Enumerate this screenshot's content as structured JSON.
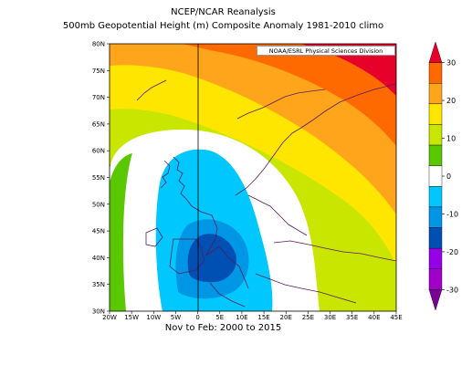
{
  "header": {
    "title": "NCEP/NCAR Reanalysis",
    "subtitle": "500mb Geopotential Height (m) Composite Anomaly 1981-2010 climo"
  },
  "credit": "NOAA/ESRL Physical Sciences Division",
  "period": "Nov to Feb: 2000 to 2015",
  "axes": {
    "lon_ticks": [
      "20W",
      "15W",
      "10W",
      "5W",
      "0",
      "5E",
      "10E",
      "15E",
      "20E",
      "25E",
      "30E",
      "35E",
      "40E",
      "45E"
    ],
    "lat_ticks": [
      "30N",
      "35N",
      "40N",
      "45N",
      "50N",
      "55N",
      "60N",
      "65N",
      "70N",
      "75N",
      "80N"
    ]
  },
  "colorbar": {
    "ticks": [
      "30",
      "20",
      "10",
      "0",
      "-10",
      "-20",
      "-30"
    ],
    "colors": [
      "#e6002a",
      "#ff6a00",
      "#ffa51c",
      "#ffe600",
      "#c8e600",
      "#5ac800",
      "#ffffff",
      "#00c8ff",
      "#0096e6",
      "#0050b4",
      "#9600e6",
      "#a000c8",
      "#7a0096"
    ]
  },
  "map": {
    "anomaly_levels": [
      -20,
      -15,
      -10,
      -5,
      0,
      5,
      10,
      15,
      20,
      25,
      30
    ],
    "region": "Europe and North Atlantic"
  }
}
